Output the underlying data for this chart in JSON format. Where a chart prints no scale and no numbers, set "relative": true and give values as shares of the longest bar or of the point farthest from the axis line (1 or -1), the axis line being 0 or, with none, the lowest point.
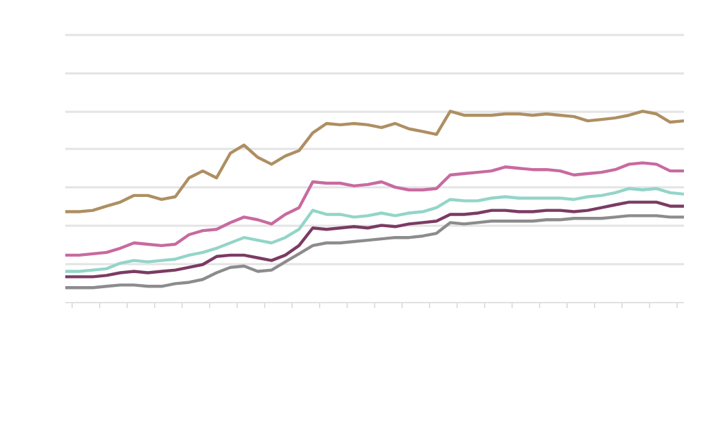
{
  "chart_data": {
    "type": "line",
    "relative": true,
    "grid": "y",
    "categories": [
      null,
      null,
      null,
      null,
      null,
      null,
      null,
      null,
      null,
      null,
      null,
      null,
      null,
      null,
      null,
      null,
      null,
      null,
      null,
      null,
      null,
      null,
      null,
      null,
      null,
      null,
      null,
      null,
      null,
      null,
      null,
      null,
      null,
      null,
      null,
      null,
      null,
      null,
      null,
      null,
      null,
      null,
      null,
      null,
      null,
      null
    ],
    "series": [
      {
        "color": "#8c8c8c",
        "values": [
          0.078,
          0.078,
          0.078,
          0.085,
          0.092,
          0.092,
          0.085,
          0.085,
          0.099,
          0.106,
          0.121,
          0.156,
          0.184,
          0.191,
          0.163,
          0.17,
          0.213,
          0.255,
          0.298,
          0.312,
          0.312,
          0.319,
          0.326,
          0.333,
          0.34,
          0.34,
          0.348,
          0.362,
          0.418,
          0.411,
          0.418,
          0.426,
          0.426,
          0.426,
          0.426,
          0.433,
          0.433,
          0.44,
          0.44,
          0.44,
          0.447,
          0.454,
          0.454,
          0.454,
          0.447,
          0.447
        ]
      },
      {
        "color": "#7b3b63",
        "values": [
          0.135,
          0.135,
          0.135,
          0.142,
          0.156,
          0.163,
          0.156,
          0.163,
          0.17,
          0.184,
          0.199,
          0.241,
          0.248,
          0.248,
          0.234,
          0.22,
          0.248,
          0.298,
          0.39,
          0.383,
          0.39,
          0.397,
          0.39,
          0.404,
          0.397,
          0.411,
          0.418,
          0.426,
          0.461,
          0.461,
          0.468,
          0.482,
          0.482,
          0.475,
          0.475,
          0.482,
          0.482,
          0.475,
          0.482,
          0.496,
          0.511,
          0.525,
          0.525,
          0.525,
          0.504,
          0.504
        ]
      },
      {
        "color": "#93d5c8",
        "values": [
          0.163,
          0.163,
          0.17,
          0.177,
          0.206,
          0.22,
          0.213,
          0.22,
          0.227,
          0.248,
          0.262,
          0.284,
          0.312,
          0.34,
          0.326,
          0.312,
          0.34,
          0.383,
          0.482,
          0.461,
          0.461,
          0.447,
          0.454,
          0.468,
          0.454,
          0.468,
          0.475,
          0.496,
          0.539,
          0.532,
          0.532,
          0.546,
          0.553,
          0.546,
          0.546,
          0.546,
          0.546,
          0.539,
          0.553,
          0.56,
          0.574,
          0.596,
          0.589,
          0.596,
          0.574,
          0.567
        ]
      },
      {
        "color": "#c86aa0",
        "values": [
          0.248,
          0.248,
          0.255,
          0.262,
          0.284,
          0.312,
          0.305,
          0.298,
          0.305,
          0.355,
          0.376,
          0.383,
          0.418,
          0.447,
          0.433,
          0.411,
          0.461,
          0.496,
          0.631,
          0.624,
          0.624,
          0.61,
          0.617,
          0.631,
          0.603,
          0.589,
          0.589,
          0.596,
          0.667,
          0.674,
          0.681,
          0.688,
          0.709,
          0.702,
          0.695,
          0.695,
          0.688,
          0.667,
          0.674,
          0.681,
          0.695,
          0.723,
          0.73,
          0.723,
          0.688,
          0.688
        ]
      },
      {
        "color": "#ae8f62",
        "values": [
          0.475,
          0.475,
          0.482,
          0.504,
          0.525,
          0.56,
          0.56,
          0.539,
          0.553,
          0.652,
          0.688,
          0.652,
          0.78,
          0.823,
          0.759,
          0.723,
          0.766,
          0.794,
          0.887,
          0.936,
          0.929,
          0.936,
          0.929,
          0.915,
          0.936,
          0.908,
          0.894,
          0.879,
          1,
          0.979,
          0.979,
          0.979,
          0.986,
          0.986,
          0.979,
          0.986,
          0.979,
          0.972,
          0.95,
          0.957,
          0.965,
          0.979,
          1,
          0.986,
          0.943,
          0.95
        ]
      }
    ]
  }
}
